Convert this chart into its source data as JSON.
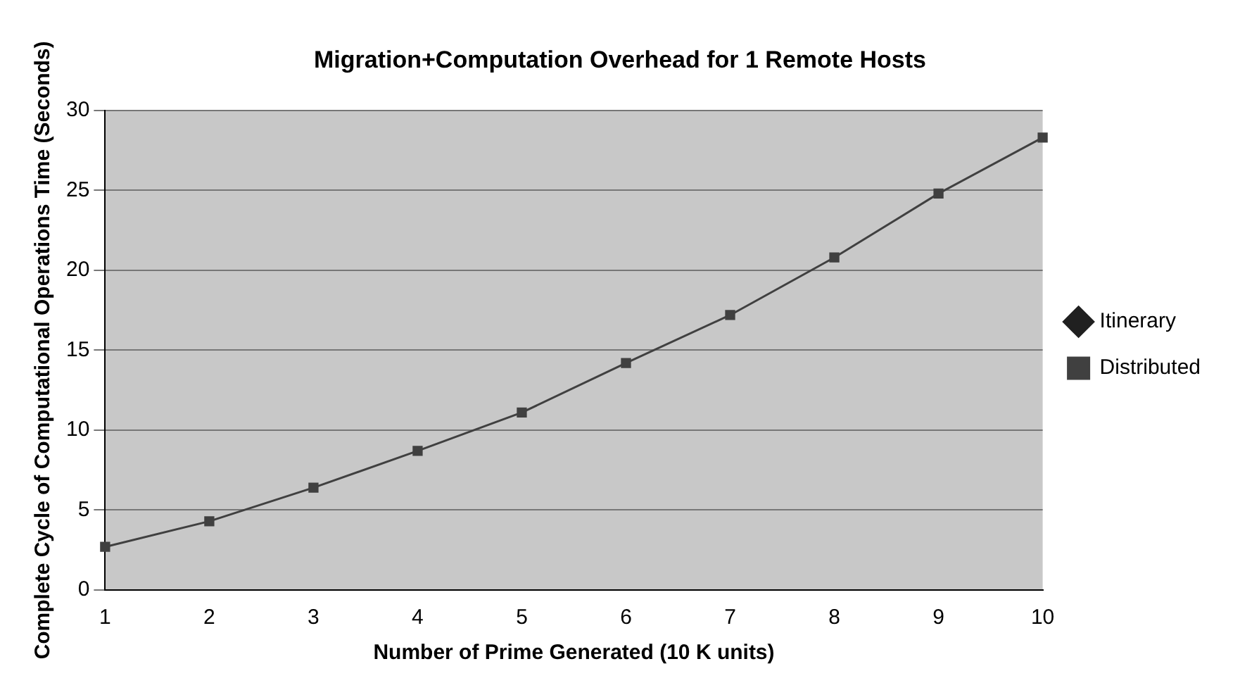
{
  "chart_data": {
    "type": "line",
    "title": "Migration+Computation Overhead for 1 Remote Hosts",
    "xlabel": "Number of Prime Generated (10 K units)",
    "ylabel": "Complete Cycle of Computational Operations Time (Seconds)",
    "categories": [
      "1",
      "2",
      "3",
      "4",
      "5",
      "6",
      "7",
      "8",
      "9",
      "10"
    ],
    "series": [
      {
        "name": "Itinerary",
        "color": "#202020",
        "marker": "diamond",
        "values": [
          null,
          null,
          null,
          null,
          null,
          null,
          null,
          null,
          null,
          null
        ]
      },
      {
        "name": "Distributed",
        "color": "#404040",
        "marker": "square",
        "values": [
          2.7,
          4.3,
          6.4,
          8.7,
          11.1,
          14.2,
          17.2,
          20.8,
          24.8,
          28.3
        ]
      }
    ],
    "ylim": [
      0,
      30
    ],
    "yticks": [
      0,
      5,
      10,
      15,
      20,
      25,
      30
    ],
    "grid": "y",
    "legend": "right"
  }
}
